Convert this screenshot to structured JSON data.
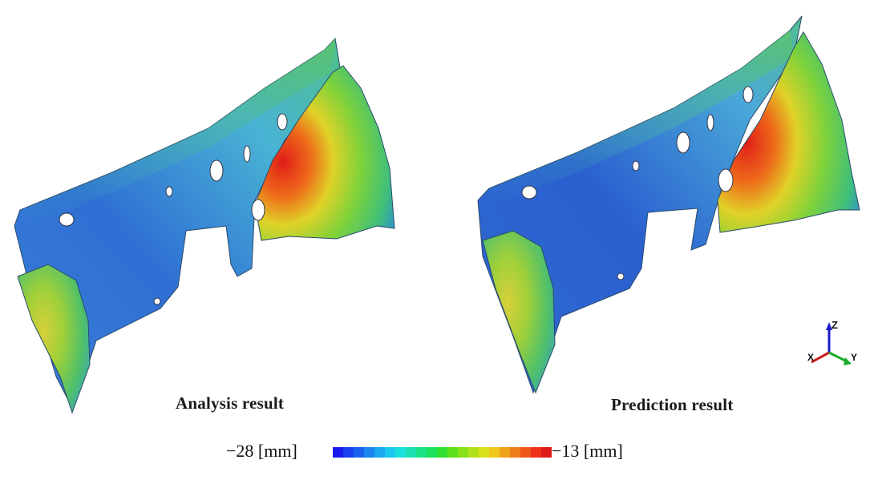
{
  "panels": {
    "left_caption": "Analysis result",
    "right_caption": "Prediction result"
  },
  "scale": {
    "min_label": "−28 [mm]",
    "max_label": "−13 [mm]",
    "colors": [
      "#1a1aee",
      "#1a3fee",
      "#1a62ee",
      "#1a86ee",
      "#1aa8ee",
      "#1ac8ee",
      "#1ae0dc",
      "#1ae0b2",
      "#1ae088",
      "#1ae05c",
      "#30e030",
      "#5ce01a",
      "#88e01a",
      "#b2e01a",
      "#d8e01a",
      "#eec81a",
      "#eea21a",
      "#ee7c1a",
      "#ee561a",
      "#ee301a",
      "#e01a1a"
    ]
  },
  "axes": {
    "z": "Z",
    "x": "X",
    "y": "Y"
  },
  "colors": {
    "blue": "#2a5fd0",
    "cyan": "#3fb3d6",
    "green": "#52c45a",
    "yellow": "#d8d23a",
    "red": "#d8301e"
  }
}
